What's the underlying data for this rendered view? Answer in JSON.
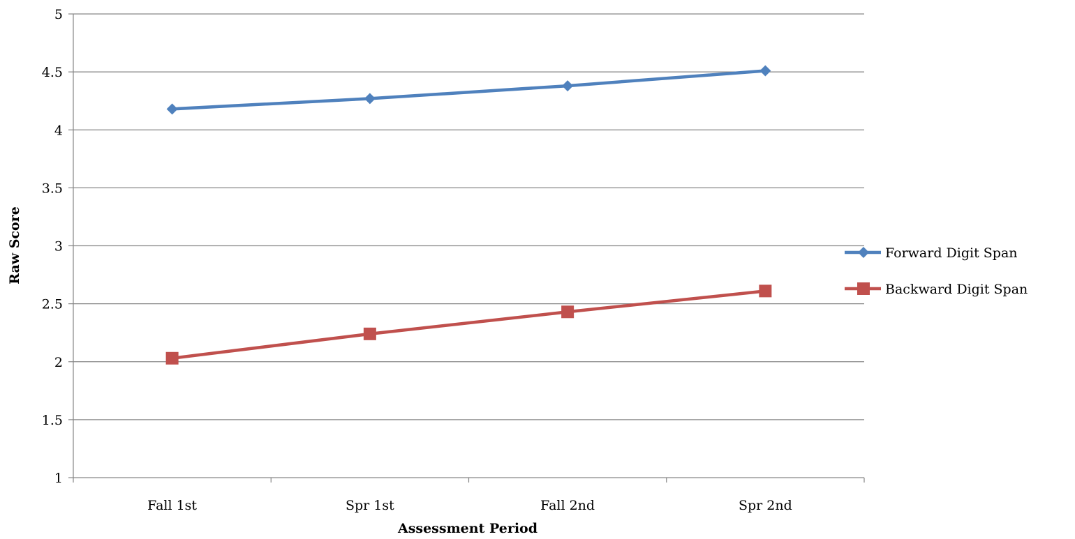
{
  "chart_data": {
    "type": "line",
    "categories": [
      "Fall 1st",
      "Spr 1st",
      "Fall 2nd",
      "Spr 2nd"
    ],
    "series": [
      {
        "name": "Forward Digit Span",
        "values": [
          4.18,
          4.27,
          4.38,
          4.51
        ],
        "color": "#4f81bd",
        "marker": "diamond"
      },
      {
        "name": "Backward Digit Span",
        "values": [
          2.03,
          2.24,
          2.43,
          2.61
        ],
        "color": "#c0504d",
        "marker": "square"
      }
    ],
    "xlabel": "Assessment Period",
    "ylabel": "Raw Score",
    "ylim": [
      1,
      5
    ],
    "yticks": [
      "1",
      "1.5",
      "2",
      "2.5",
      "3",
      "3.5",
      "4",
      "4.5",
      "5"
    ],
    "grid": true,
    "legend": "right"
  }
}
